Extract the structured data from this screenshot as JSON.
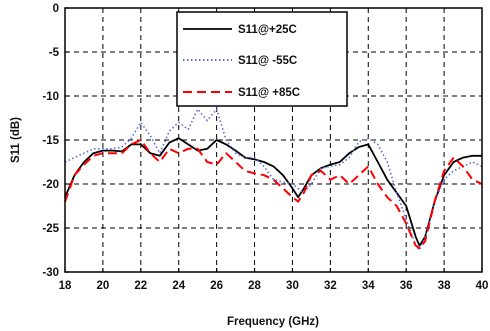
{
  "chart_data": {
    "type": "line",
    "title": "",
    "xlabel": "Frequency (GHz)",
    "ylabel": "S11 (dB)",
    "xlim": [
      18,
      40
    ],
    "ylim": [
      -30,
      0
    ],
    "x_ticks": [
      "18",
      "20",
      "22",
      "24",
      "26",
      "28",
      "30",
      "32",
      "34",
      "36",
      "38",
      "40"
    ],
    "y_ticks": [
      "0",
      "-5",
      "-10",
      "-15",
      "-20",
      "-25",
      "-30"
    ],
    "grid": true,
    "legend_position": "top-center",
    "series": [
      {
        "name": "S11@+25C",
        "color": "#000000",
        "style": "solid",
        "x": [
          18,
          18.5,
          19,
          19.5,
          20,
          20.5,
          21,
          21.5,
          22,
          22.5,
          23,
          23.5,
          24,
          24.5,
          25,
          25.5,
          26,
          26.5,
          27,
          27.5,
          28,
          28.5,
          29,
          29.5,
          30,
          30.3,
          30.6,
          31,
          31.5,
          32,
          32.5,
          33,
          33.5,
          34,
          34.5,
          35,
          35.5,
          36,
          36.5,
          36.7,
          37,
          37.5,
          38,
          38.5,
          39,
          39.5,
          40
        ],
        "y": [
          -21.5,
          -19,
          -17.5,
          -16.5,
          -16.2,
          -16.2,
          -16.3,
          -15.5,
          -15.5,
          -16.5,
          -16.8,
          -15.3,
          -14.8,
          -15.5,
          -16.2,
          -16.0,
          -15.0,
          -15.5,
          -16.2,
          -17.0,
          -17.2,
          -17.5,
          -18.0,
          -19.0,
          -20.5,
          -21.5,
          -20.5,
          -19.0,
          -18.2,
          -17.8,
          -17.5,
          -16.5,
          -15.8,
          -15.5,
          -17.5,
          -19.5,
          -21.0,
          -22.5,
          -26.0,
          -27.0,
          -26.0,
          -22.0,
          -19.0,
          -17.5,
          -17.0,
          -16.8,
          -16.8
        ]
      },
      {
        "name": "S11@ -55C",
        "color": "#5b6ad6",
        "style": "dotted",
        "x": [
          18,
          18.5,
          19,
          19.5,
          20,
          20.5,
          21,
          21.5,
          22,
          22.5,
          23,
          23.5,
          24,
          24.5,
          25,
          25.5,
          26,
          26.5,
          27,
          27.5,
          28,
          28.5,
          29,
          29.5,
          30,
          30.3,
          30.6,
          31,
          31.5,
          32,
          32.5,
          33,
          33.5,
          34,
          34.5,
          35,
          35.5,
          36,
          36.5,
          36.7,
          37,
          37.5,
          38,
          38.5,
          39,
          39.5,
          40
        ],
        "y": [
          -17.5,
          -17.0,
          -16.5,
          -16.0,
          -16.0,
          -16.0,
          -15.8,
          -14.8,
          -13.0,
          -14.5,
          -16.5,
          -14.0,
          -13.0,
          -13.8,
          -11.5,
          -12.8,
          -11.5,
          -15.0,
          -16.5,
          -17.0,
          -17.0,
          -18.0,
          -19.5,
          -19.8,
          -20.0,
          -20.5,
          -21.0,
          -20.0,
          -18.2,
          -18.0,
          -17.8,
          -17.0,
          -15.2,
          -14.8,
          -15.5,
          -17.5,
          -21.0,
          -24.0,
          -27.0,
          -27.5,
          -26.0,
          -22.0,
          -19.5,
          -18.5,
          -18.0,
          -17.5,
          -18.0
        ]
      },
      {
        "name": "S11@ +85C",
        "color": "#ff0000",
        "style": "dashed",
        "x": [
          18,
          18.5,
          19,
          19.5,
          20,
          20.5,
          21,
          21.5,
          22,
          22.5,
          23,
          23.5,
          24,
          24.5,
          25,
          25.5,
          26,
          26.5,
          27,
          27.5,
          28,
          28.5,
          29,
          29.5,
          30,
          30.3,
          30.6,
          31,
          31.5,
          32,
          32.5,
          33,
          33.5,
          34,
          34.5,
          35,
          35.5,
          36,
          36.5,
          36.7,
          37,
          37.5,
          38,
          38.5,
          39,
          39.5,
          40
        ],
        "y": [
          -22.0,
          -19.0,
          -17.8,
          -16.8,
          -16.5,
          -16.5,
          -16.5,
          -15.5,
          -15.0,
          -16.5,
          -17.5,
          -16.0,
          -16.5,
          -16.0,
          -16.0,
          -17.5,
          -17.8,
          -16.5,
          -17.5,
          -18.5,
          -18.8,
          -19.0,
          -19.5,
          -20.5,
          -21.5,
          -22.0,
          -21.0,
          -19.0,
          -18.5,
          -19.5,
          -19.0,
          -20.0,
          -19.0,
          -18.0,
          -20.0,
          -21.5,
          -22.5,
          -24.5,
          -27.0,
          -27.3,
          -26.5,
          -22.0,
          -18.5,
          -17.0,
          -18.0,
          -19.5,
          -20.0
        ]
      }
    ]
  }
}
